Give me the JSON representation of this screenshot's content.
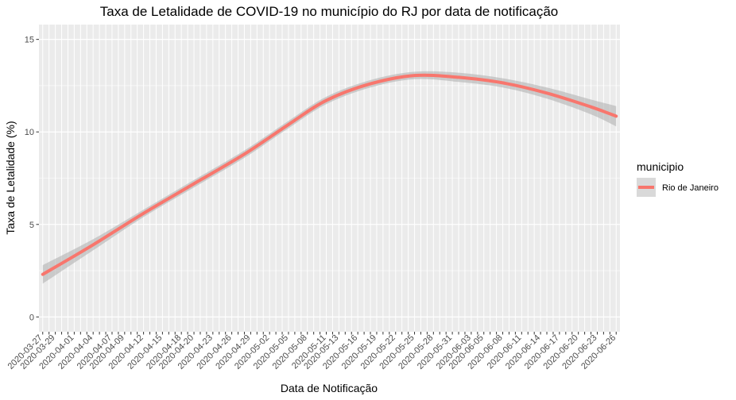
{
  "chart_data": {
    "type": "line",
    "title": "Taxa de Letalidade de COVID-19 no município do RJ por data de notificação",
    "xlabel": "Data de Notificação",
    "ylabel": "Taxa de Letalidade (%)",
    "ylim": [
      -0.8,
      15.8
    ],
    "y_ticks": [
      0,
      5,
      10,
      15
    ],
    "y_tick_labels": [
      "0",
      "5",
      "10",
      "15"
    ],
    "x_range": [
      "2020-03-27",
      "2020-06-26"
    ],
    "x_tick_labels": [
      "2020-03-27",
      "2020-03-29",
      "2020-04-01",
      "2020-04-04",
      "2020-04-07",
      "2020-04-09",
      "2020-04-12",
      "2020-04-15",
      "2020-04-18",
      "2020-04-20",
      "2020-04-23",
      "2020-04-26",
      "2020-04-29",
      "2020-05-02",
      "2020-05-05",
      "2020-05-08",
      "2020-05-11",
      "2020-05-13",
      "2020-05-16",
      "2020-05-19",
      "2020-05-22",
      "2020-05-25",
      "2020-05-28",
      "2020-05-31",
      "2020-06-03",
      "2020-06-05",
      "2020-06-08",
      "2020-06-11",
      "2020-06-14",
      "2020-06-17",
      "2020-06-20",
      "2020-06-23",
      "2020-06-26"
    ],
    "grid": true,
    "legend": {
      "title": "municipio",
      "position": "right"
    },
    "colors": {
      "line": "#f8766d",
      "ribbon": "#b3b3b3",
      "panel": "#ebebeb",
      "grid_major": "#ffffff"
    },
    "series": [
      {
        "name": "Rio de Janeiro",
        "x": [
          "2020-03-27",
          "2020-04-04",
          "2020-04-12",
          "2020-04-20",
          "2020-04-28",
          "2020-05-05",
          "2020-05-11",
          "2020-05-18",
          "2020-05-25",
          "2020-06-01",
          "2020-06-08",
          "2020-06-15",
          "2020-06-22",
          "2020-06-26"
        ],
        "y": [
          2.3,
          3.9,
          5.6,
          7.2,
          8.8,
          10.4,
          11.7,
          12.6,
          13.05,
          12.95,
          12.65,
          12.1,
          11.35,
          10.85
        ],
        "lower": [
          1.8,
          3.6,
          5.4,
          7.0,
          8.6,
          10.2,
          11.5,
          12.4,
          12.85,
          12.7,
          12.4,
          11.8,
          10.95,
          10.3
        ],
        "upper": [
          2.8,
          4.2,
          5.8,
          7.4,
          9.0,
          10.6,
          11.9,
          12.8,
          13.25,
          13.2,
          12.9,
          12.4,
          11.75,
          11.4
        ]
      }
    ]
  }
}
